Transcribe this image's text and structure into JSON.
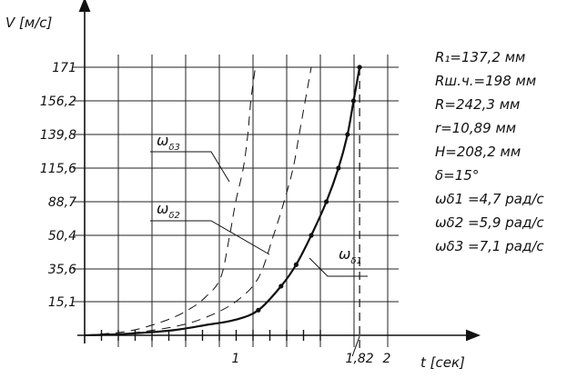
{
  "chart_data": {
    "type": "line",
    "ylabel": "V [м/с]",
    "xlabel": "t [сек]",
    "y_ticks": [
      "15,1",
      "35,6",
      "50,4",
      "88,7",
      "115,6",
      "139,8",
      "156,2",
      "171"
    ],
    "x_ticks": [
      {
        "label": "1",
        "t": 1.0
      },
      {
        "label": "1,82",
        "t": 1.82
      },
      {
        "label": "2",
        "t": 2.0
      }
    ],
    "xlim": [
      0,
      2.4
    ],
    "grid": true,
    "series": [
      {
        "name": "ωδ1",
        "style": "solid",
        "t": [
          0.0,
          0.2,
          0.4,
          0.6,
          0.8,
          1.0,
          1.15,
          1.3,
          1.4,
          1.5,
          1.6,
          1.68,
          1.74,
          1.78,
          1.82
        ],
        "v": [
          0.0,
          0.4,
          1.2,
          2.4,
          4.6,
          7.0,
          11.3,
          24.8,
          37.5,
          50.4,
          88.7,
          115.6,
          139.8,
          156.2,
          171.0
        ]
      },
      {
        "name": "ωδ2",
        "style": "dashed",
        "t": [
          0.0,
          0.3,
          0.6,
          0.8,
          1.0,
          1.15,
          1.25,
          1.32,
          1.38,
          1.42,
          1.46,
          1.5
        ],
        "v": [
          0.0,
          1.0,
          4.0,
          8.0,
          15.1,
          30.0,
          50.4,
          88.7,
          115.6,
          139.8,
          156.2,
          171.0
        ]
      },
      {
        "name": "ωδ3",
        "style": "dashed",
        "t": [
          0.0,
          0.3,
          0.55,
          0.7,
          0.8,
          0.9,
          0.96,
          1.0,
          1.05,
          1.08,
          1.1,
          1.13
        ],
        "v": [
          0.0,
          2.0,
          7.0,
          12.0,
          18.0,
          30.0,
          50.4,
          88.7,
          115.6,
          139.8,
          156.2,
          171.0
        ]
      }
    ],
    "annotations": [
      {
        "symbol": "ω",
        "sub": "δ3",
        "target_series": 2
      },
      {
        "symbol": "ω",
        "sub": "δ2",
        "target_series": 1
      },
      {
        "symbol": "ω",
        "sub": "δ1",
        "target_series": 0
      }
    ],
    "parameters": [
      "R₁=137,2 мм",
      "Rш.ч.=198 мм",
      "R=242,3 мм",
      "r=10,89 мм",
      "H=208,2 мм",
      "δ=15°",
      "ωδ1 =4,7 рад/с",
      "ωδ2 =5,9 рад/с",
      "ωδ3 =7,1 рад/с"
    ]
  }
}
